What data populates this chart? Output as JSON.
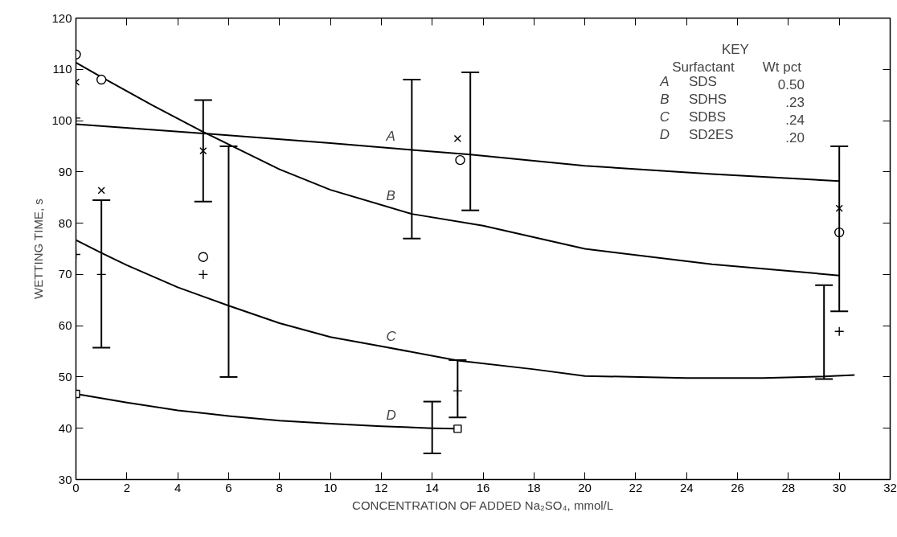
{
  "chart_data": {
    "type": "line",
    "xlabel": "CONCENTRATION OF ADDED Na₂SO₄, mmol/L",
    "ylabel": "WETTING TIME, s",
    "xlim": [
      0,
      32
    ],
    "xticks": [
      0,
      2,
      4,
      6,
      8,
      10,
      12,
      14,
      16,
      18,
      20,
      22,
      24,
      26,
      28,
      30,
      32
    ],
    "ylim": [
      30,
      120
    ],
    "yticks": [
      30,
      40,
      50,
      60,
      70,
      80,
      90,
      100,
      110,
      120
    ],
    "grid": false,
    "annotations": [
      "KEY",
      "Surfactant\tWt pct",
      "A\tSDS\t0.50",
      "B\tSDHS\t.23",
      "C\tSDBS\t.24",
      "D\tSD2ES\t.20"
    ],
    "series": [
      {
        "name": "A",
        "marker": "none",
        "color": "#000000",
        "x": [
          0,
          5,
          10,
          13.2,
          15.5,
          20,
          25,
          30
        ],
        "values": [
          99.3,
          97.5,
          95.6,
          94.3,
          93.4,
          91.2,
          89.6,
          88.2
        ],
        "errors": [
          null,
          null,
          null,
          [
            77,
            108
          ],
          [
            82.5,
            109.4
          ],
          null,
          null,
          null
        ]
      },
      {
        "name": "B",
        "marker": "none",
        "color": "#000000",
        "x": [
          0,
          1,
          3,
          5,
          8,
          10,
          13.2,
          16,
          20,
          25,
          30
        ],
        "values": [
          111.3,
          108.5,
          103,
          97.8,
          90.5,
          86.5,
          81.8,
          79.5,
          75,
          72,
          69.8
        ]
      },
      {
        "name": "C",
        "marker": "none",
        "color": "#000000",
        "x": [
          0,
          1,
          2,
          4,
          6,
          8,
          10,
          12,
          15,
          18,
          20,
          24,
          27,
          29.4,
          30.6
        ],
        "values": [
          76.7,
          74.2,
          71.8,
          67.5,
          63.9,
          60.5,
          57.8,
          56,
          53.2,
          51.5,
          50.2,
          49.8,
          49.8,
          50.1,
          50.4
        ],
        "errors": [
          null,
          null,
          null,
          null,
          [
            50,
            95
          ],
          null,
          null,
          null,
          null,
          null,
          null,
          null,
          null,
          [
            49.6,
            67.9
          ],
          null
        ]
      },
      {
        "name": "D",
        "marker": "none",
        "color": "#000000",
        "x": [
          0,
          2,
          4,
          6,
          8,
          10,
          12,
          14,
          15
        ],
        "values": [
          46.7,
          45,
          43.5,
          42.4,
          41.5,
          40.9,
          40.4,
          40,
          39.9
        ],
        "errors": [
          null,
          null,
          null,
          null,
          null,
          null,
          null,
          [
            35.1,
            45.2
          ],
          null
        ]
      },
      {
        "type": "scatter",
        "marker": "circle",
        "color": "#000000",
        "x": [
          0,
          1,
          5,
          15.1,
          30
        ],
        "values": [
          112.9,
          108,
          73.4,
          92.3,
          78.2
        ]
      },
      {
        "type": "scatter",
        "marker": "x",
        "color": "#000000",
        "x": [
          0,
          1,
          5,
          15,
          30
        ],
        "values": [
          107.5,
          86.4,
          94.1,
          96.5,
          82.9
        ],
        "errors": [
          null,
          null,
          [
            84.2,
            104
          ],
          null,
          [
            62.8,
            95
          ]
        ]
      },
      {
        "type": "scatter",
        "marker": "cross",
        "color": "#000000",
        "x": [
          0,
          0,
          1,
          5,
          15,
          30
        ],
        "values": [
          100.5,
          73.9,
          70,
          70,
          47.3,
          58.9
        ],
        "errors": [
          null,
          null,
          [
            55.7,
            84.5
          ],
          null,
          [
            42.1,
            53.3
          ],
          null
        ]
      },
      {
        "type": "scatter",
        "marker": "square",
        "color": "#000000",
        "x": [
          0,
          15
        ],
        "values": [
          46.7,
          39.9
        ]
      }
    ]
  }
}
